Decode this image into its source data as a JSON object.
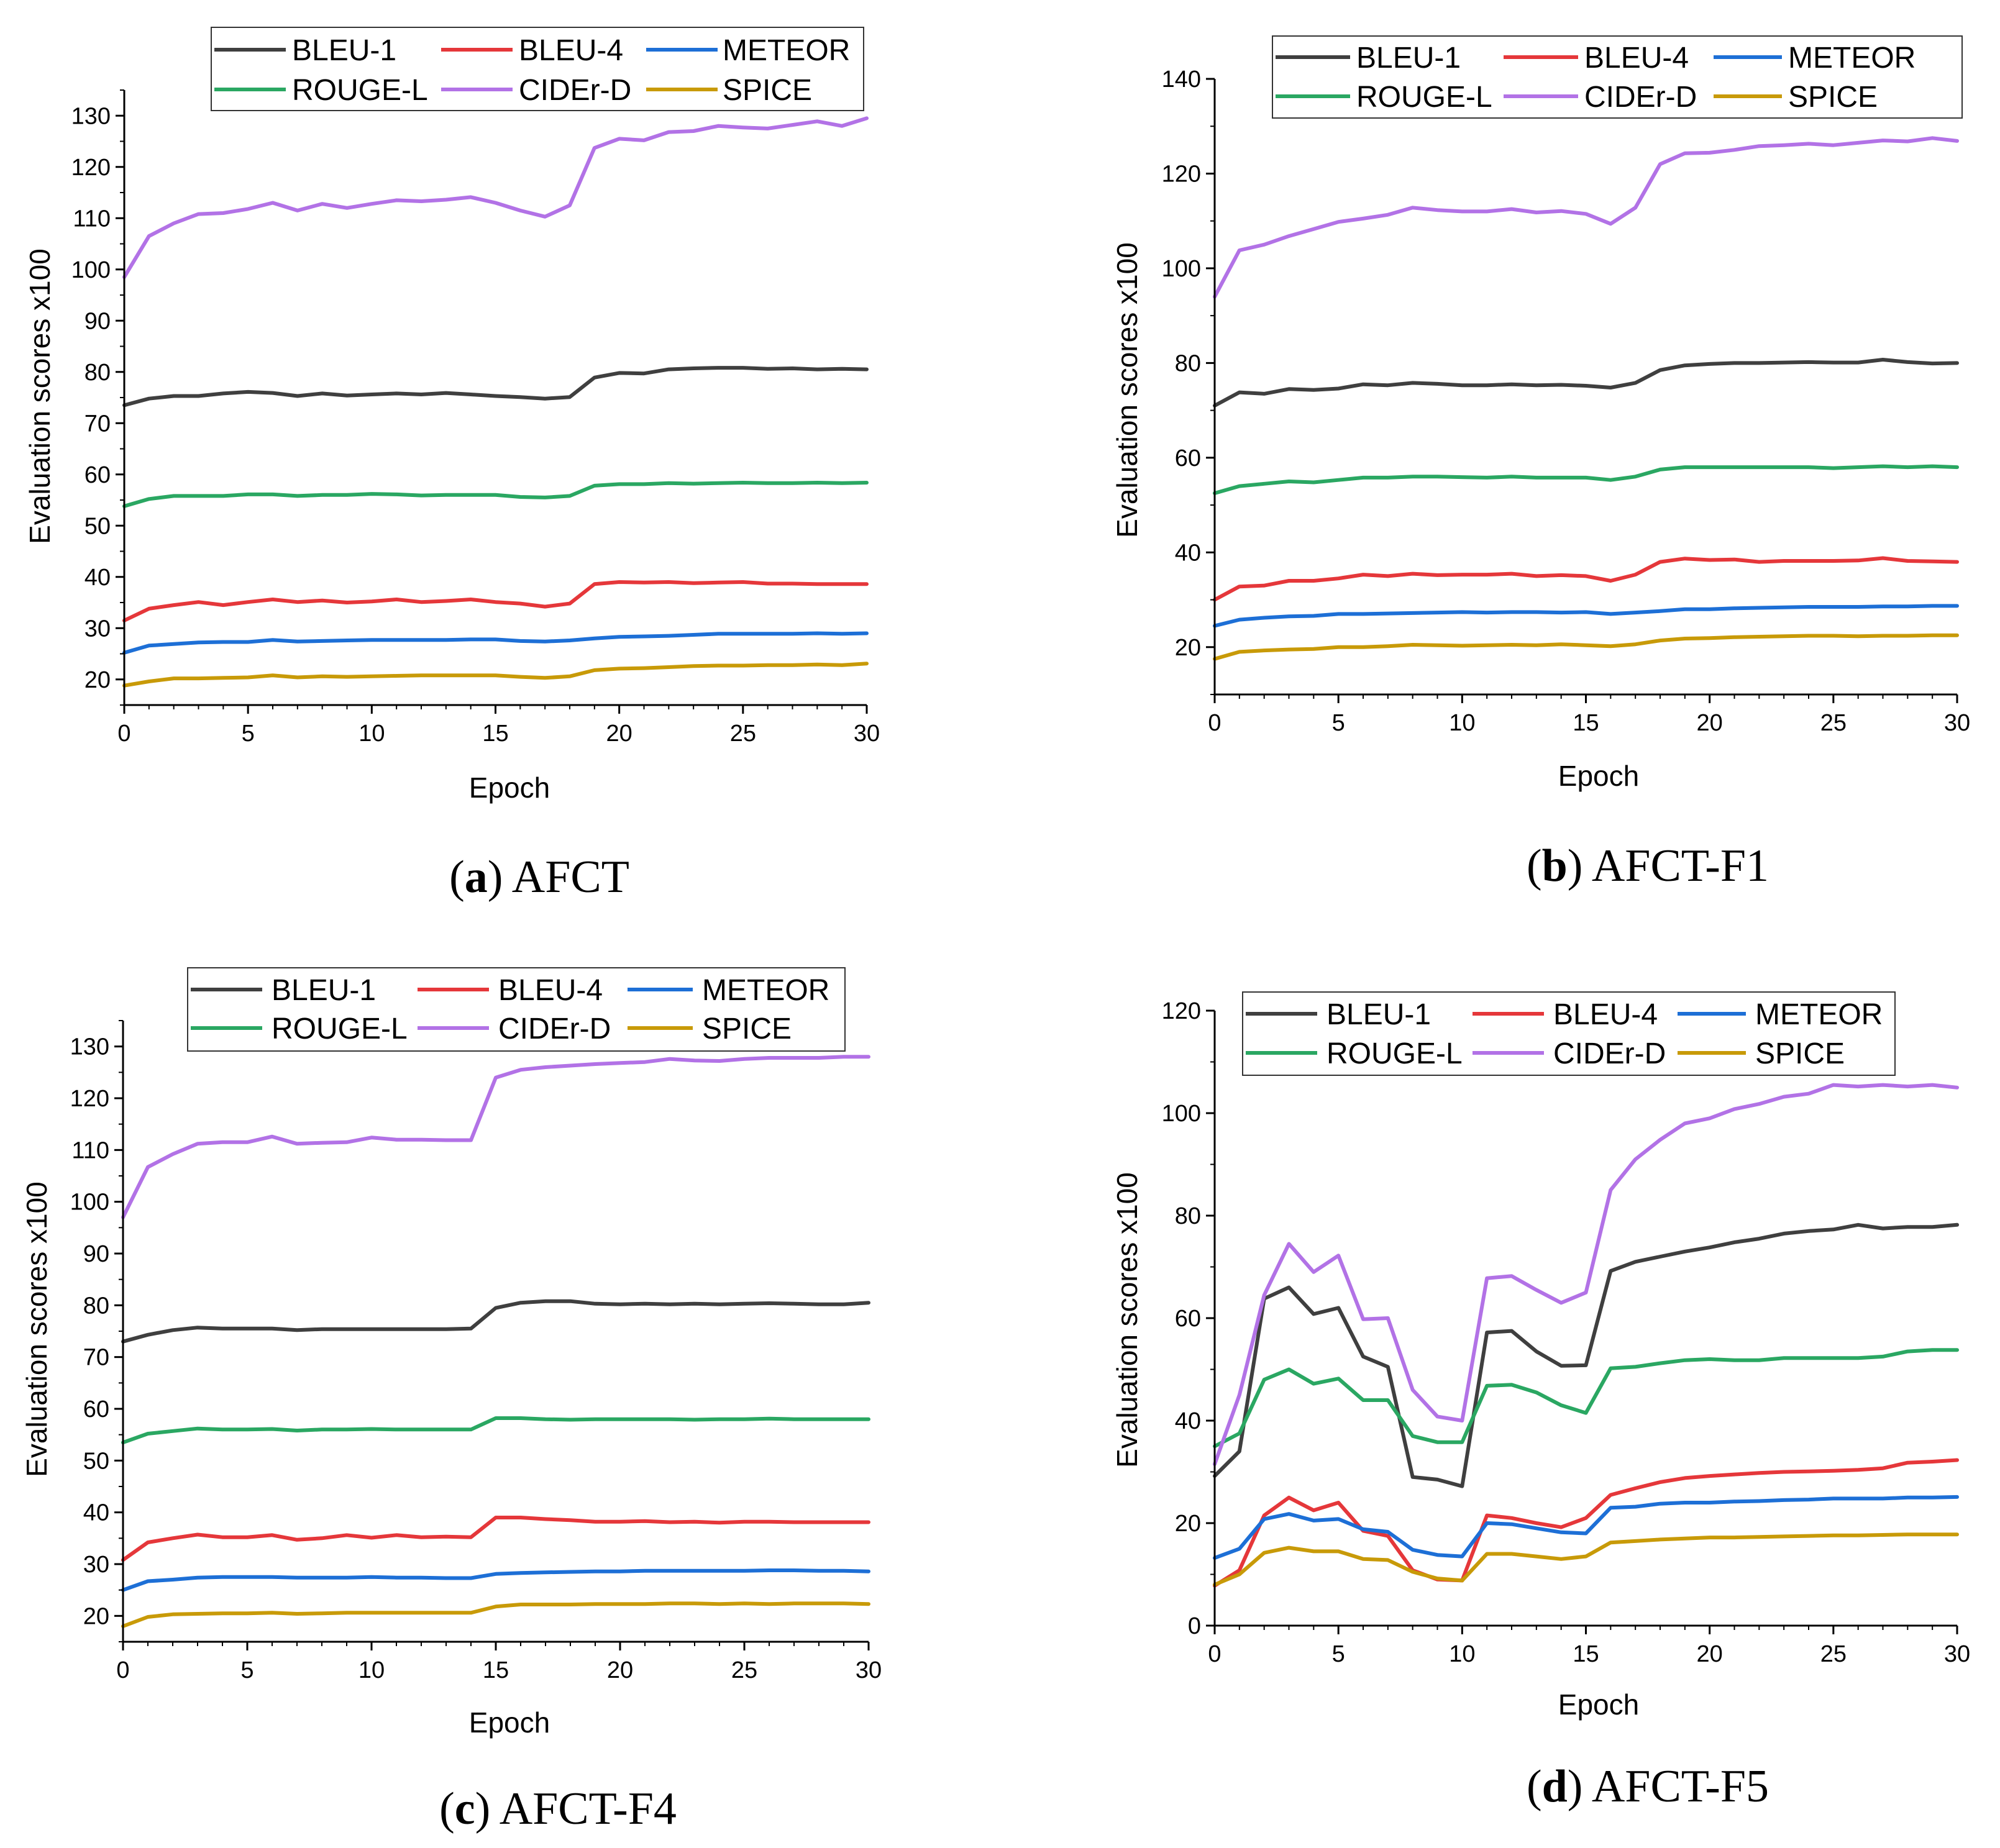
{
  "colors": {
    "BLEU-1": "#3f3f3f",
    "BLEU-4": "#e5373a",
    "METEOR": "#1d6fd6",
    "ROUGE-L": "#2aa762",
    "CIDEr-D": "#b272e6",
    "SPICE": "#c89a08",
    "axis": "#000000",
    "legend_border": "#333333"
  },
  "chart_data": [
    {
      "type": "line",
      "caption_letter": "a",
      "caption_text": "AFCT",
      "xlabel": "Epoch",
      "ylabel": "Evaluation scores x100",
      "xlim": [
        0,
        30
      ],
      "ylim": [
        15,
        135
      ],
      "xticks": [
        0,
        5,
        10,
        15,
        20,
        25,
        30
      ],
      "yticks": [
        20,
        30,
        40,
        50,
        60,
        70,
        80,
        90,
        100,
        110,
        120,
        130
      ],
      "x": [
        0,
        1,
        2,
        3,
        4,
        5,
        6,
        7,
        8,
        9,
        10,
        11,
        12,
        13,
        14,
        15,
        16,
        17,
        18,
        19,
        20,
        21,
        22,
        23,
        24,
        25,
        26,
        27,
        28,
        29,
        30
      ],
      "legend": "top-center",
      "series": [
        {
          "name": "BLEU-1",
          "values": [
            73.5,
            74.8,
            75.3,
            75.3,
            75.8,
            76.1,
            75.9,
            75.3,
            75.8,
            75.4,
            75.6,
            75.8,
            75.6,
            75.9,
            75.6,
            75.3,
            75.1,
            74.8,
            75.1,
            78.9,
            79.8,
            79.7,
            80.5,
            80.7,
            80.8,
            80.8,
            80.6,
            80.7,
            80.5,
            80.6,
            80.5
          ]
        },
        {
          "name": "BLEU-4",
          "values": [
            31.5,
            33.8,
            34.5,
            35.1,
            34.5,
            35.1,
            35.6,
            35.1,
            35.4,
            35.0,
            35.2,
            35.6,
            35.1,
            35.3,
            35.6,
            35.1,
            34.8,
            34.2,
            34.8,
            38.6,
            39.0,
            38.9,
            39.0,
            38.8,
            38.9,
            39.0,
            38.7,
            38.7,
            38.6,
            38.6,
            38.6
          ]
        },
        {
          "name": "METEOR",
          "values": [
            25.2,
            26.6,
            26.9,
            27.2,
            27.3,
            27.3,
            27.7,
            27.4,
            27.5,
            27.6,
            27.7,
            27.7,
            27.7,
            27.7,
            27.8,
            27.8,
            27.5,
            27.4,
            27.6,
            28.0,
            28.3,
            28.4,
            28.5,
            28.7,
            28.9,
            28.9,
            28.9,
            28.9,
            29.0,
            28.9,
            29.0
          ]
        },
        {
          "name": "ROUGE-L",
          "values": [
            53.8,
            55.2,
            55.8,
            55.8,
            55.8,
            56.1,
            56.1,
            55.8,
            56.0,
            56.0,
            56.2,
            56.1,
            55.9,
            56.0,
            56.0,
            56.0,
            55.6,
            55.5,
            55.8,
            57.8,
            58.1,
            58.1,
            58.3,
            58.2,
            58.3,
            58.4,
            58.3,
            58.3,
            58.4,
            58.3,
            58.4
          ]
        },
        {
          "name": "CIDEr-D",
          "values": [
            98.5,
            106.5,
            109.0,
            110.8,
            111.0,
            111.8,
            113.0,
            111.5,
            112.8,
            112.0,
            112.8,
            113.5,
            113.3,
            113.6,
            114.1,
            113.0,
            111.5,
            110.3,
            112.5,
            123.7,
            125.5,
            125.2,
            126.8,
            127.0,
            128.0,
            127.7,
            127.5,
            128.2,
            128.9,
            128.0,
            129.5
          ]
        },
        {
          "name": "SPICE",
          "values": [
            18.8,
            19.6,
            20.2,
            20.2,
            20.3,
            20.4,
            20.8,
            20.4,
            20.6,
            20.5,
            20.6,
            20.7,
            20.8,
            20.8,
            20.8,
            20.8,
            20.5,
            20.3,
            20.6,
            21.8,
            22.1,
            22.2,
            22.4,
            22.6,
            22.7,
            22.7,
            22.8,
            22.8,
            22.9,
            22.8,
            23.1
          ]
        }
      ]
    },
    {
      "type": "line",
      "caption_letter": "b",
      "caption_text": "AFCT-F1",
      "xlabel": "Epoch",
      "ylabel": "Evaluation scores x100",
      "xlim": [
        0,
        30
      ],
      "ylim": [
        10,
        140
      ],
      "xticks": [
        0,
        5,
        10,
        15,
        20,
        25,
        30
      ],
      "yticks": [
        20,
        40,
        60,
        80,
        100,
        120,
        140
      ],
      "x": [
        0,
        1,
        2,
        3,
        4,
        5,
        6,
        7,
        8,
        9,
        10,
        11,
        12,
        13,
        14,
        15,
        16,
        17,
        18,
        19,
        20,
        21,
        22,
        23,
        24,
        25,
        26,
        27,
        28,
        29,
        30
      ],
      "legend": "top-center",
      "series": [
        {
          "name": "BLEU-1",
          "values": [
            71.0,
            73.8,
            73.5,
            74.5,
            74.3,
            74.6,
            75.5,
            75.3,
            75.8,
            75.6,
            75.3,
            75.3,
            75.5,
            75.3,
            75.4,
            75.2,
            74.8,
            75.8,
            78.5,
            79.5,
            79.8,
            80.0,
            80.0,
            80.1,
            80.2,
            80.1,
            80.1,
            80.7,
            80.2,
            79.9,
            80.0
          ]
        },
        {
          "name": "BLEU-4",
          "values": [
            30.0,
            32.8,
            33.0,
            34.0,
            34.0,
            34.5,
            35.3,
            35.0,
            35.5,
            35.2,
            35.3,
            35.3,
            35.5,
            35.0,
            35.2,
            35.0,
            34.0,
            35.3,
            38.0,
            38.7,
            38.4,
            38.5,
            38.0,
            38.2,
            38.2,
            38.2,
            38.3,
            38.8,
            38.2,
            38.1,
            38.0
          ]
        },
        {
          "name": "METEOR",
          "values": [
            24.5,
            25.8,
            26.2,
            26.5,
            26.6,
            27.0,
            27.0,
            27.1,
            27.2,
            27.3,
            27.4,
            27.3,
            27.4,
            27.4,
            27.3,
            27.4,
            27.0,
            27.3,
            27.6,
            28.0,
            28.0,
            28.2,
            28.3,
            28.4,
            28.5,
            28.5,
            28.5,
            28.6,
            28.6,
            28.7,
            28.7
          ]
        },
        {
          "name": "ROUGE-L",
          "values": [
            52.5,
            54.0,
            54.5,
            55.0,
            54.8,
            55.3,
            55.8,
            55.8,
            56.0,
            56.0,
            55.9,
            55.8,
            56.0,
            55.8,
            55.8,
            55.8,
            55.3,
            56.0,
            57.5,
            58.0,
            58.0,
            58.0,
            58.0,
            58.0,
            58.0,
            57.8,
            58.0,
            58.2,
            58.0,
            58.2,
            58.0
          ]
        },
        {
          "name": "CIDEr-D",
          "values": [
            94.0,
            103.8,
            105.0,
            106.8,
            108.3,
            109.8,
            110.5,
            111.3,
            112.8,
            112.3,
            112.0,
            112.0,
            112.5,
            111.8,
            112.1,
            111.5,
            109.4,
            112.8,
            122.0,
            124.3,
            124.4,
            125.0,
            125.8,
            126.0,
            126.3,
            126.0,
            126.5,
            127.0,
            126.8,
            127.5,
            126.9
          ]
        },
        {
          "name": "SPICE",
          "values": [
            17.5,
            19.0,
            19.3,
            19.5,
            19.6,
            20.0,
            20.0,
            20.2,
            20.5,
            20.4,
            20.3,
            20.4,
            20.5,
            20.4,
            20.6,
            20.4,
            20.2,
            20.6,
            21.4,
            21.8,
            21.9,
            22.1,
            22.2,
            22.3,
            22.4,
            22.4,
            22.3,
            22.4,
            22.4,
            22.5,
            22.5
          ]
        }
      ]
    },
    {
      "type": "line",
      "caption_letter": "c",
      "caption_text": "AFCT-F4",
      "xlabel": "Epoch",
      "ylabel": "Evaluation scores x100",
      "xlim": [
        0,
        30
      ],
      "ylim": [
        15,
        135
      ],
      "xticks": [
        0,
        5,
        10,
        15,
        20,
        25,
        30
      ],
      "yticks": [
        20,
        30,
        40,
        50,
        60,
        70,
        80,
        90,
        100,
        110,
        120,
        130
      ],
      "x": [
        0,
        1,
        2,
        3,
        4,
        5,
        6,
        7,
        8,
        9,
        10,
        11,
        12,
        13,
        14,
        15,
        16,
        17,
        18,
        19,
        20,
        21,
        22,
        23,
        24,
        25,
        26,
        27,
        28,
        29,
        30
      ],
      "legend": "top-center",
      "series": [
        {
          "name": "BLEU-1",
          "values": [
            73.0,
            74.3,
            75.2,
            75.7,
            75.5,
            75.5,
            75.5,
            75.2,
            75.4,
            75.4,
            75.4,
            75.4,
            75.4,
            75.4,
            75.5,
            79.5,
            80.5,
            80.8,
            80.8,
            80.3,
            80.2,
            80.3,
            80.2,
            80.3,
            80.2,
            80.3,
            80.4,
            80.3,
            80.2,
            80.2,
            80.5
          ]
        },
        {
          "name": "BLEU-4",
          "values": [
            30.8,
            34.2,
            35.0,
            35.7,
            35.2,
            35.2,
            35.6,
            34.7,
            35.0,
            35.6,
            35.1,
            35.6,
            35.2,
            35.3,
            35.2,
            39.0,
            39.0,
            38.7,
            38.5,
            38.2,
            38.2,
            38.3,
            38.1,
            38.2,
            38.0,
            38.2,
            38.2,
            38.1,
            38.1,
            38.1,
            38.1
          ]
        },
        {
          "name": "METEOR",
          "values": [
            25.0,
            26.7,
            27.0,
            27.4,
            27.5,
            27.5,
            27.5,
            27.4,
            27.4,
            27.4,
            27.5,
            27.4,
            27.4,
            27.3,
            27.3,
            28.1,
            28.3,
            28.4,
            28.5,
            28.6,
            28.6,
            28.7,
            28.7,
            28.7,
            28.7,
            28.7,
            28.8,
            28.8,
            28.7,
            28.7,
            28.6
          ]
        },
        {
          "name": "ROUGE-L",
          "values": [
            53.5,
            55.2,
            55.7,
            56.2,
            56.0,
            56.0,
            56.1,
            55.8,
            56.0,
            56.0,
            56.1,
            56.0,
            56.0,
            56.0,
            56.0,
            58.2,
            58.2,
            58.0,
            57.9,
            58.0,
            58.0,
            58.0,
            58.0,
            57.9,
            58.0,
            58.0,
            58.1,
            58.0,
            58.0,
            58.0,
            58.0
          ]
        },
        {
          "name": "CIDEr-D",
          "values": [
            97.0,
            106.7,
            109.2,
            111.2,
            111.5,
            111.5,
            112.6,
            111.2,
            111.4,
            111.5,
            112.4,
            112.0,
            112.0,
            111.9,
            111.9,
            124.0,
            125.5,
            126.0,
            126.3,
            126.6,
            126.8,
            127.0,
            127.6,
            127.3,
            127.2,
            127.6,
            127.8,
            127.8,
            127.8,
            128.0,
            128.0
          ]
        },
        {
          "name": "SPICE",
          "values": [
            18.0,
            19.8,
            20.3,
            20.4,
            20.5,
            20.5,
            20.6,
            20.4,
            20.5,
            20.6,
            20.6,
            20.6,
            20.6,
            20.6,
            20.6,
            21.8,
            22.2,
            22.2,
            22.2,
            22.3,
            22.3,
            22.3,
            22.4,
            22.4,
            22.3,
            22.4,
            22.3,
            22.4,
            22.4,
            22.4,
            22.3
          ]
        }
      ]
    },
    {
      "type": "line",
      "caption_letter": "d",
      "caption_text": "AFCT-F5",
      "xlabel": "Epoch",
      "ylabel": "Evaluation scores x100",
      "xlim": [
        0,
        30
      ],
      "ylim": [
        0,
        120
      ],
      "xticks": [
        0,
        5,
        10,
        15,
        20,
        25,
        30
      ],
      "yticks": [
        0,
        20,
        40,
        60,
        80,
        100,
        120
      ],
      "x": [
        0,
        1,
        2,
        3,
        4,
        5,
        6,
        7,
        8,
        9,
        10,
        11,
        12,
        13,
        14,
        15,
        16,
        17,
        18,
        19,
        20,
        21,
        22,
        23,
        24,
        25,
        26,
        27,
        28,
        29,
        30
      ],
      "legend": "top-center",
      "series": [
        {
          "name": "BLEU-1",
          "values": [
            29.2,
            34.0,
            63.8,
            66.0,
            60.8,
            62.0,
            52.5,
            50.5,
            29.0,
            28.5,
            27.2,
            57.2,
            57.5,
            53.5,
            50.7,
            50.8,
            69.2,
            71.0,
            72.0,
            73.0,
            73.8,
            74.8,
            75.5,
            76.5,
            77.0,
            77.3,
            78.2,
            77.5,
            77.8,
            77.8,
            78.2
          ]
        },
        {
          "name": "BLEU-4",
          "values": [
            7.8,
            10.8,
            21.5,
            25.0,
            22.5,
            24.0,
            18.5,
            17.5,
            10.8,
            9.0,
            8.8,
            21.5,
            21.0,
            20.0,
            19.2,
            21.0,
            25.5,
            26.8,
            28.0,
            28.8,
            29.2,
            29.5,
            29.8,
            30.0,
            30.1,
            30.2,
            30.4,
            30.7,
            31.8,
            32.0,
            32.3
          ]
        },
        {
          "name": "METEOR",
          "values": [
            13.2,
            15.0,
            20.8,
            21.8,
            20.5,
            20.8,
            18.8,
            18.3,
            14.8,
            13.8,
            13.5,
            20.0,
            19.8,
            19.0,
            18.2,
            18.0,
            23.0,
            23.2,
            23.8,
            24.0,
            24.0,
            24.2,
            24.3,
            24.5,
            24.6,
            24.8,
            24.8,
            24.8,
            25.0,
            25.0,
            25.1
          ]
        },
        {
          "name": "ROUGE-L",
          "values": [
            35.0,
            37.5,
            48.0,
            50.0,
            47.2,
            48.2,
            44.0,
            44.0,
            37.0,
            35.8,
            35.8,
            46.8,
            47.0,
            45.5,
            43.0,
            41.5,
            50.2,
            50.5,
            51.2,
            51.8,
            52.0,
            51.8,
            51.8,
            52.2,
            52.2,
            52.2,
            52.2,
            52.5,
            53.5,
            53.8,
            53.8
          ]
        },
        {
          "name": "CIDEr-D",
          "values": [
            31.5,
            45.0,
            64.5,
            74.5,
            69.0,
            72.2,
            59.8,
            60.0,
            46.0,
            40.8,
            40.0,
            67.8,
            68.2,
            65.5,
            63.0,
            65.0,
            85.0,
            91.0,
            94.8,
            98.0,
            99.0,
            100.8,
            101.8,
            103.2,
            103.8,
            105.5,
            105.2,
            105.5,
            105.2,
            105.5,
            105.0
          ]
        },
        {
          "name": "SPICE",
          "values": [
            8.0,
            10.0,
            14.2,
            15.2,
            14.5,
            14.5,
            13.0,
            12.8,
            10.5,
            9.2,
            8.8,
            14.0,
            14.0,
            13.5,
            13.0,
            13.5,
            16.2,
            16.5,
            16.8,
            17.0,
            17.2,
            17.2,
            17.3,
            17.4,
            17.5,
            17.6,
            17.6,
            17.7,
            17.8,
            17.8,
            17.8
          ]
        }
      ]
    }
  ]
}
